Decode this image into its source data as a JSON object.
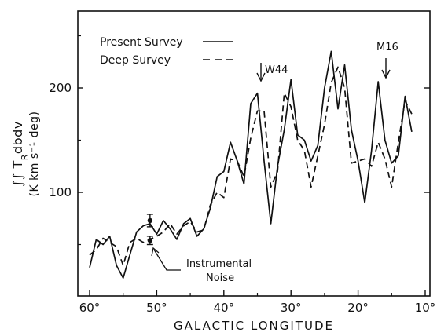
{
  "chart_data": {
    "type": "line",
    "title": "",
    "xlabel": "GALACTIC LONGITUDE",
    "ylabel_main": "∫∫ T",
    "ylabel_sub": "R",
    "ylabel_tail": "dbdv",
    "ylabel_units": "(K km s⁻¹ deg)",
    "xlim": [
      61,
      10
    ],
    "ylim": [
      0,
      270
    ],
    "x_ticks": [
      {
        "value": 60,
        "label": "60°"
      },
      {
        "value": 50,
        "label": "50°"
      },
      {
        "value": 40,
        "label": "40°"
      },
      {
        "value": 30,
        "label": "30°"
      },
      {
        "value": 20,
        "label": "20°"
      },
      {
        "value": 10,
        "label": "10°"
      }
    ],
    "y_ticks": [
      {
        "value": 100,
        "label": "100"
      },
      {
        "value": 200,
        "label": "200"
      }
    ],
    "legend_position": "top-left",
    "series": [
      {
        "name": "Present Survey",
        "style": "solid",
        "color": "#111111",
        "points": [
          [
            60,
            28
          ],
          [
            59,
            55
          ],
          [
            58,
            50
          ],
          [
            57,
            58
          ],
          [
            56,
            30
          ],
          [
            55,
            18
          ],
          [
            54,
            40
          ],
          [
            53,
            62
          ],
          [
            52,
            68
          ],
          [
            51,
            70
          ],
          [
            50,
            60
          ],
          [
            49,
            73
          ],
          [
            48,
            65
          ],
          [
            47,
            55
          ],
          [
            46,
            70
          ],
          [
            45,
            75
          ],
          [
            44,
            58
          ],
          [
            43,
            65
          ],
          [
            42,
            85
          ],
          [
            41,
            115
          ],
          [
            40,
            120
          ],
          [
            39,
            148
          ],
          [
            38,
            130
          ],
          [
            37,
            108
          ],
          [
            36,
            185
          ],
          [
            35,
            195
          ],
          [
            34,
            130
          ],
          [
            33,
            70
          ],
          [
            32,
            125
          ],
          [
            31,
            160
          ],
          [
            30,
            208
          ],
          [
            29,
            155
          ],
          [
            28,
            150
          ],
          [
            27,
            130
          ],
          [
            26,
            145
          ],
          [
            25,
            200
          ],
          [
            24,
            235
          ],
          [
            23,
            180
          ],
          [
            22,
            222
          ],
          [
            21,
            160
          ],
          [
            20,
            130
          ],
          [
            19,
            90
          ],
          [
            18,
            140
          ],
          [
            17,
            206
          ],
          [
            16,
            150
          ],
          [
            15,
            128
          ],
          [
            14,
            135
          ],
          [
            13,
            192
          ],
          [
            12,
            158
          ]
        ]
      },
      {
        "name": "Deep Survey",
        "style": "dashed",
        "color": "#111111",
        "points": [
          [
            60,
            40
          ],
          [
            59,
            45
          ],
          [
            58,
            56
          ],
          [
            57,
            52
          ],
          [
            56,
            48
          ],
          [
            55,
            30
          ],
          [
            54,
            52
          ],
          [
            53,
            56
          ],
          [
            52,
            52
          ],
          [
            51,
            55
          ],
          [
            50,
            58
          ],
          [
            49,
            62
          ],
          [
            48,
            70
          ],
          [
            47,
            60
          ],
          [
            46,
            68
          ],
          [
            45,
            72
          ],
          [
            44,
            62
          ],
          [
            43,
            64
          ],
          [
            42,
            88
          ],
          [
            41,
            100
          ],
          [
            40,
            95
          ],
          [
            39,
            132
          ],
          [
            38,
            130
          ],
          [
            37,
            115
          ],
          [
            36,
            152
          ],
          [
            35,
            178
          ],
          [
            34,
            178
          ],
          [
            33,
            105
          ],
          [
            32,
            120
          ],
          [
            31,
            195
          ],
          [
            30,
            182
          ],
          [
            29,
            150
          ],
          [
            28,
            140
          ],
          [
            27,
            105
          ],
          [
            26,
            135
          ],
          [
            25,
            165
          ],
          [
            24,
            205
          ],
          [
            23,
            220
          ],
          [
            22,
            200
          ],
          [
            21,
            128
          ],
          [
            20,
            130
          ],
          [
            19,
            132
          ],
          [
            18,
            125
          ],
          [
            17,
            148
          ],
          [
            16,
            132
          ],
          [
            15,
            105
          ],
          [
            14,
            148
          ],
          [
            13,
            188
          ],
          [
            12,
            175
          ]
        ]
      }
    ],
    "error_bars": [
      {
        "x": 51,
        "y": 73,
        "low": 67,
        "high": 79
      },
      {
        "x": 51,
        "y": 54,
        "low": 50,
        "high": 58
      }
    ],
    "annotations": [
      {
        "text": "W44",
        "x": 35.5,
        "y": 205,
        "arrow": "down"
      },
      {
        "text": "M16",
        "x": 17,
        "y": 215,
        "arrow": "down"
      },
      {
        "text": "Instrumental",
        "text2": "Noise",
        "x": 51,
        "y": 50
      }
    ]
  }
}
